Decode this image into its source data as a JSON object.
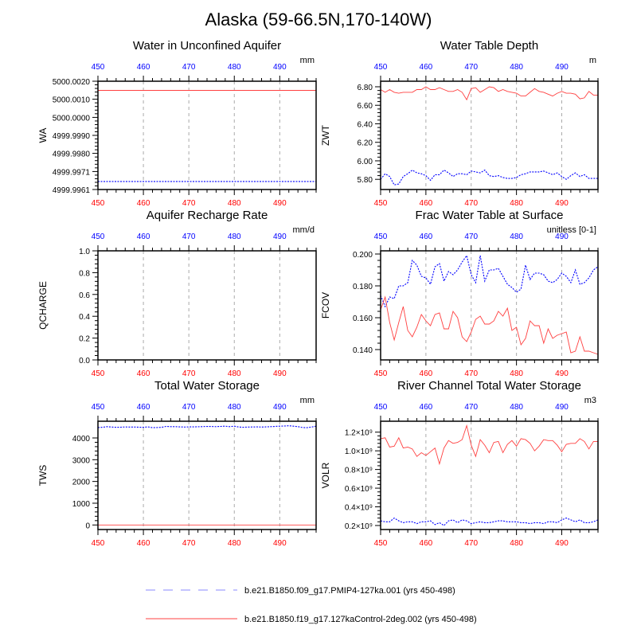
{
  "title": "Alaska (59-66.5N,170-140W)",
  "legend": [
    {
      "label": "b.e21.B1850.f09_g17.PMIP4-127ka.001 (yrs 450-498)",
      "color": "#0000ff",
      "style": "dashed"
    },
    {
      "label": "b.e21.B1850.f19_g17.127kaControl-2deg.002 (yrs 450-498)",
      "color": "#ff0000",
      "style": "solid"
    }
  ],
  "colors": {
    "blue_series": "#0000ff",
    "red_series": "#ff4040",
    "top_axis": "#0000ff",
    "bottom_axis": "#ff0000"
  },
  "chart_data": [
    {
      "type": "line",
      "title": "Water in Unconfined Aquifer",
      "ylabel": "WA",
      "units": "mm",
      "xlim": [
        450,
        498
      ],
      "ylim": [
        4999.9961,
        5000.002
      ],
      "xticks": [
        450,
        460,
        470,
        480,
        490
      ],
      "yticks": [
        {
          "value": 4999.9961,
          "label": "4999.9961"
        },
        {
          "value": 4999.99708,
          "label": "4999.9971"
        },
        {
          "value": 4999.99807,
          "label": "4999.9980"
        },
        {
          "value": 4999.99905,
          "label": "4999.9990"
        },
        {
          "value": 5000.00003,
          "label": "5000.0000"
        },
        {
          "value": 5000.00102,
          "label": "5000.0010"
        },
        {
          "value": 5000.002,
          "label": "5000.0020"
        }
      ],
      "series": [
        {
          "name": "PMIP4-127ka.001",
          "values": [
            4999.99654,
            4999.99654,
            4999.99654,
            4999.99654,
            4999.99654,
            4999.99654,
            4999.99654,
            4999.99654,
            4999.99654,
            4999.99654,
            4999.99654,
            4999.99654,
            4999.99654,
            4999.99654,
            4999.99654,
            4999.99654,
            4999.99654,
            4999.99654,
            4999.99654,
            4999.99654,
            4999.99654,
            4999.99654,
            4999.99654,
            4999.99654,
            4999.99654,
            4999.99654,
            4999.99654,
            4999.99654,
            4999.99654,
            4999.99654,
            4999.99654,
            4999.99654,
            4999.99654,
            4999.99654,
            4999.99654,
            4999.99654,
            4999.99654,
            4999.99654,
            4999.99654,
            4999.99654,
            4999.99654,
            4999.99654,
            4999.99654,
            4999.99654,
            4999.99654,
            4999.99654,
            4999.99654,
            4999.99654,
            4999.99654
          ]
        },
        {
          "name": "127kaControl-2deg.002",
          "values": [
            5000.0015,
            5000.0015,
            5000.0015,
            5000.0015,
            5000.0015,
            5000.0015,
            5000.0015,
            5000.0015,
            5000.0015,
            5000.0015,
            5000.0015,
            5000.0015,
            5000.0015,
            5000.0015,
            5000.0015,
            5000.0015,
            5000.0015,
            5000.0015,
            5000.0015,
            5000.0015,
            5000.0015,
            5000.0015,
            5000.0015,
            5000.0015,
            5000.0015,
            5000.0015,
            5000.0015,
            5000.0015,
            5000.0015,
            5000.0015,
            5000.0015,
            5000.0015,
            5000.0015,
            5000.0015,
            5000.0015,
            5000.0015,
            5000.0015,
            5000.0015,
            5000.0015,
            5000.0015,
            5000.0015,
            5000.0015,
            5000.0015,
            5000.0015,
            5000.0015,
            5000.0015,
            5000.0015,
            5000.0015,
            5000.0015
          ]
        }
      ]
    },
    {
      "type": "line",
      "title": "Water Table Depth",
      "ylabel": "ZWT",
      "units": "m",
      "xlim": [
        450,
        498
      ],
      "ylim": [
        5.69,
        6.86
      ],
      "xticks": [
        450,
        460,
        470,
        480,
        490
      ],
      "yticks": [
        {
          "value": 5.8,
          "label": "5.80"
        },
        {
          "value": 6.0,
          "label": "6.00"
        },
        {
          "value": 6.2,
          "label": "6.20"
        },
        {
          "value": 6.4,
          "label": "6.40"
        },
        {
          "value": 6.6,
          "label": "6.60"
        },
        {
          "value": 6.8,
          "label": "6.80"
        }
      ],
      "series": [
        {
          "name": "PMIP4-127ka.001",
          "values": [
            5.8,
            5.86,
            5.83,
            5.74,
            5.75,
            5.83,
            5.86,
            5.9,
            5.87,
            5.86,
            5.84,
            5.79,
            5.85,
            5.85,
            5.9,
            5.87,
            5.83,
            5.86,
            5.86,
            5.85,
            5.89,
            5.88,
            5.87,
            5.9,
            5.84,
            5.83,
            5.84,
            5.82,
            5.81,
            5.81,
            5.82,
            5.85,
            5.86,
            5.88,
            5.88,
            5.88,
            5.89,
            5.87,
            5.85,
            5.87,
            5.83,
            5.8,
            5.84,
            5.87,
            5.83,
            5.85,
            5.81,
            5.81,
            5.81
          ]
        },
        {
          "name": "127kaControl-2deg.002",
          "values": [
            6.77,
            6.74,
            6.77,
            6.74,
            6.73,
            6.74,
            6.74,
            6.74,
            6.77,
            6.77,
            6.8,
            6.77,
            6.77,
            6.79,
            6.77,
            6.75,
            6.75,
            6.77,
            6.74,
            6.66,
            6.78,
            6.79,
            6.74,
            6.77,
            6.8,
            6.79,
            6.75,
            6.77,
            6.75,
            6.74,
            6.73,
            6.7,
            6.7,
            6.74,
            6.78,
            6.75,
            6.74,
            6.72,
            6.7,
            6.73,
            6.75,
            6.73,
            6.73,
            6.72,
            6.67,
            6.68,
            6.75,
            6.71,
            6.71
          ]
        }
      ]
    },
    {
      "type": "line",
      "title": "Aquifer Recharge Rate",
      "ylabel": "QCHARGE",
      "units": "mm/d",
      "xlim": [
        450,
        498
      ],
      "ylim": [
        0,
        1.0
      ],
      "xticks": [
        450,
        460,
        470,
        480,
        490
      ],
      "yticks": [
        {
          "value": 0,
          "label": "0.0"
        },
        {
          "value": 0.2,
          "label": "0.2"
        },
        {
          "value": 0.4,
          "label": "0.4"
        },
        {
          "value": 0.6,
          "label": "0.6"
        },
        {
          "value": 0.8,
          "label": "0.8"
        },
        {
          "value": 1.0,
          "label": "1.0"
        }
      ],
      "series": [
        {
          "name": "PMIP4-127ka.001",
          "values": [
            0,
            0,
            0,
            0,
            0,
            0,
            0,
            0,
            0,
            0,
            0,
            0,
            0,
            0,
            0,
            0,
            0,
            0,
            0,
            0,
            0,
            0,
            0,
            0,
            0,
            0,
            0,
            0,
            0,
            0,
            0,
            0,
            0,
            0,
            0,
            0,
            0,
            0,
            0,
            0,
            0,
            0,
            0,
            0,
            0,
            0,
            0,
            0,
            0
          ]
        },
        {
          "name": "127kaControl-2deg.002",
          "values": [
            0,
            0,
            0,
            0,
            0,
            0,
            0,
            0,
            0,
            0,
            0,
            0,
            0,
            0,
            0,
            0,
            0,
            0,
            0,
            0,
            0,
            0,
            0,
            0,
            0,
            0,
            0,
            0,
            0,
            0,
            0,
            0,
            0,
            0,
            0,
            0,
            0,
            0,
            0,
            0,
            0,
            0,
            0,
            0,
            0,
            0,
            0,
            0,
            0
          ]
        }
      ]
    },
    {
      "type": "line",
      "title": "Frac Water Table at Surface",
      "ylabel": "FCOV",
      "units": "unitless [0-1]",
      "xlim": [
        450,
        498
      ],
      "ylim": [
        0.1335,
        0.202
      ],
      "xticks": [
        450,
        460,
        470,
        480,
        490
      ],
      "yticks": [
        {
          "value": 0.14,
          "label": "0.140"
        },
        {
          "value": 0.16,
          "label": "0.160"
        },
        {
          "value": 0.18,
          "label": "0.180"
        },
        {
          "value": 0.2,
          "label": "0.200"
        }
      ],
      "series": [
        {
          "name": "PMIP4-127ka.001",
          "values": [
            0.174,
            0.167,
            0.173,
            0.172,
            0.18,
            0.18,
            0.182,
            0.196,
            0.193,
            0.186,
            0.185,
            0.181,
            0.192,
            0.194,
            0.183,
            0.189,
            0.187,
            0.19,
            0.195,
            0.199,
            0.187,
            0.182,
            0.199,
            0.183,
            0.19,
            0.19,
            0.191,
            0.186,
            0.181,
            0.179,
            0.176,
            0.178,
            0.193,
            0.184,
            0.188,
            0.188,
            0.187,
            0.183,
            0.182,
            0.184,
            0.188,
            0.186,
            0.182,
            0.19,
            0.181,
            0.182,
            0.185,
            0.19,
            0.192
          ]
        },
        {
          "name": "127kaControl-2deg.002",
          "values": [
            0.165,
            0.173,
            0.157,
            0.146,
            0.157,
            0.167,
            0.152,
            0.148,
            0.154,
            0.162,
            0.158,
            0.155,
            0.162,
            0.163,
            0.153,
            0.153,
            0.164,
            0.16,
            0.148,
            0.145,
            0.151,
            0.159,
            0.161,
            0.156,
            0.156,
            0.158,
            0.164,
            0.161,
            0.166,
            0.152,
            0.154,
            0.143,
            0.147,
            0.158,
            0.155,
            0.155,
            0.144,
            0.153,
            0.147,
            0.149,
            0.15,
            0.151,
            0.138,
            0.139,
            0.148,
            0.139,
            0.139,
            0.138,
            0.137
          ]
        }
      ]
    },
    {
      "type": "line",
      "title": "Total Water Storage",
      "ylabel": "TWS",
      "units": "mm",
      "xlim": [
        450,
        498
      ],
      "ylim": [
        -209,
        4768
      ],
      "xticks": [
        450,
        460,
        470,
        480,
        490
      ],
      "yticks": [
        {
          "value": 0,
          "label": "0"
        },
        {
          "value": 1000,
          "label": "1000"
        },
        {
          "value": 2000,
          "label": "2000"
        },
        {
          "value": 3000,
          "label": "3000"
        },
        {
          "value": 4000,
          "label": "4000"
        }
      ],
      "series": [
        {
          "name": "PMIP4-127ka.001",
          "values": [
            4480,
            4490,
            4520,
            4500,
            4490,
            4495,
            4505,
            4500,
            4500,
            4495,
            4490,
            4510,
            4470,
            4480,
            4490,
            4530,
            4520,
            4520,
            4510,
            4500,
            4510,
            4510,
            4515,
            4520,
            4530,
            4525,
            4520,
            4530,
            4540,
            4520,
            4540,
            4500,
            4490,
            4500,
            4505,
            4510,
            4500,
            4510,
            4520,
            4530,
            4540,
            4550,
            4560,
            4540,
            4520,
            4480,
            4470,
            4500,
            4540
          ]
        },
        {
          "name": "127kaControl-2deg.002",
          "values": [
            0,
            0,
            0,
            0,
            0,
            0,
            0,
            0,
            0,
            0,
            0,
            0,
            0,
            0,
            0,
            0,
            0,
            0,
            0,
            0,
            0,
            0,
            0,
            0,
            0,
            0,
            0,
            0,
            0,
            0,
            0,
            0,
            0,
            0,
            0,
            0,
            0,
            0,
            0,
            0,
            0,
            0,
            0,
            0,
            0,
            0,
            0,
            0,
            0
          ]
        }
      ]
    },
    {
      "type": "line",
      "title": "River Channel Total Water Storage",
      "ylabel": "VOLR",
      "units": "m3",
      "xlim": [
        450,
        498
      ],
      "ylim": [
        157000000.0,
        1317000000.0
      ],
      "xticks": [
        450,
        460,
        470,
        480,
        490
      ],
      "yticks": [
        {
          "value": 200000000.0,
          "label": "0.2×10⁹"
        },
        {
          "value": 400000000.0,
          "label": "0.4×10⁹"
        },
        {
          "value": 600000000.0,
          "label": "0.6×10⁹"
        },
        {
          "value": 800000000.0,
          "label": "0.8×10⁹"
        },
        {
          "value": 1000000000.0,
          "label": "1.0×10⁹"
        },
        {
          "value": 1200000000.0,
          "label": "1.2×10⁹"
        }
      ],
      "series": [
        {
          "name": "PMIP4-127ka.001",
          "values": [
            250000000.0,
            240000000.0,
            240000000.0,
            280000000.0,
            250000000.0,
            230000000.0,
            240000000.0,
            240000000.0,
            220000000.0,
            240000000.0,
            240000000.0,
            250000000.0,
            210000000.0,
            230000000.0,
            200000000.0,
            250000000.0,
            260000000.0,
            230000000.0,
            260000000.0,
            250000000.0,
            220000000.0,
            230000000.0,
            240000000.0,
            230000000.0,
            230000000.0,
            240000000.0,
            250000000.0,
            250000000.0,
            240000000.0,
            240000000.0,
            240000000.0,
            230000000.0,
            230000000.0,
            220000000.0,
            230000000.0,
            230000000.0,
            220000000.0,
            240000000.0,
            240000000.0,
            230000000.0,
            260000000.0,
            280000000.0,
            260000000.0,
            240000000.0,
            260000000.0,
            230000000.0,
            230000000.0,
            240000000.0,
            260000000.0
          ]
        },
        {
          "name": "127kaControl-2deg.002",
          "values": [
            1130000000.0,
            1140000000.0,
            1040000000.0,
            1050000000.0,
            1140000000.0,
            1030000000.0,
            1040000000.0,
            1020000000.0,
            940000000.0,
            980000000.0,
            950000000.0,
            990000000.0,
            1030000000.0,
            860000000.0,
            1030000000.0,
            1110000000.0,
            1080000000.0,
            1090000000.0,
            1120000000.0,
            1270000000.0,
            1060000000.0,
            940000000.0,
            1120000000.0,
            1060000000.0,
            980000000.0,
            1090000000.0,
            1100000000.0,
            980000000.0,
            1070000000.0,
            1110000000.0,
            1050000000.0,
            1130000000.0,
            1120000000.0,
            1080000000.0,
            1000000000.0,
            1050000000.0,
            1120000000.0,
            1110000000.0,
            1110000000.0,
            1060000000.0,
            990000000.0,
            1070000000.0,
            1080000000.0,
            1080000000.0,
            1130000000.0,
            1100000000.0,
            1020000000.0,
            1100000000.0,
            1100000000.0
          ]
        }
      ]
    }
  ]
}
